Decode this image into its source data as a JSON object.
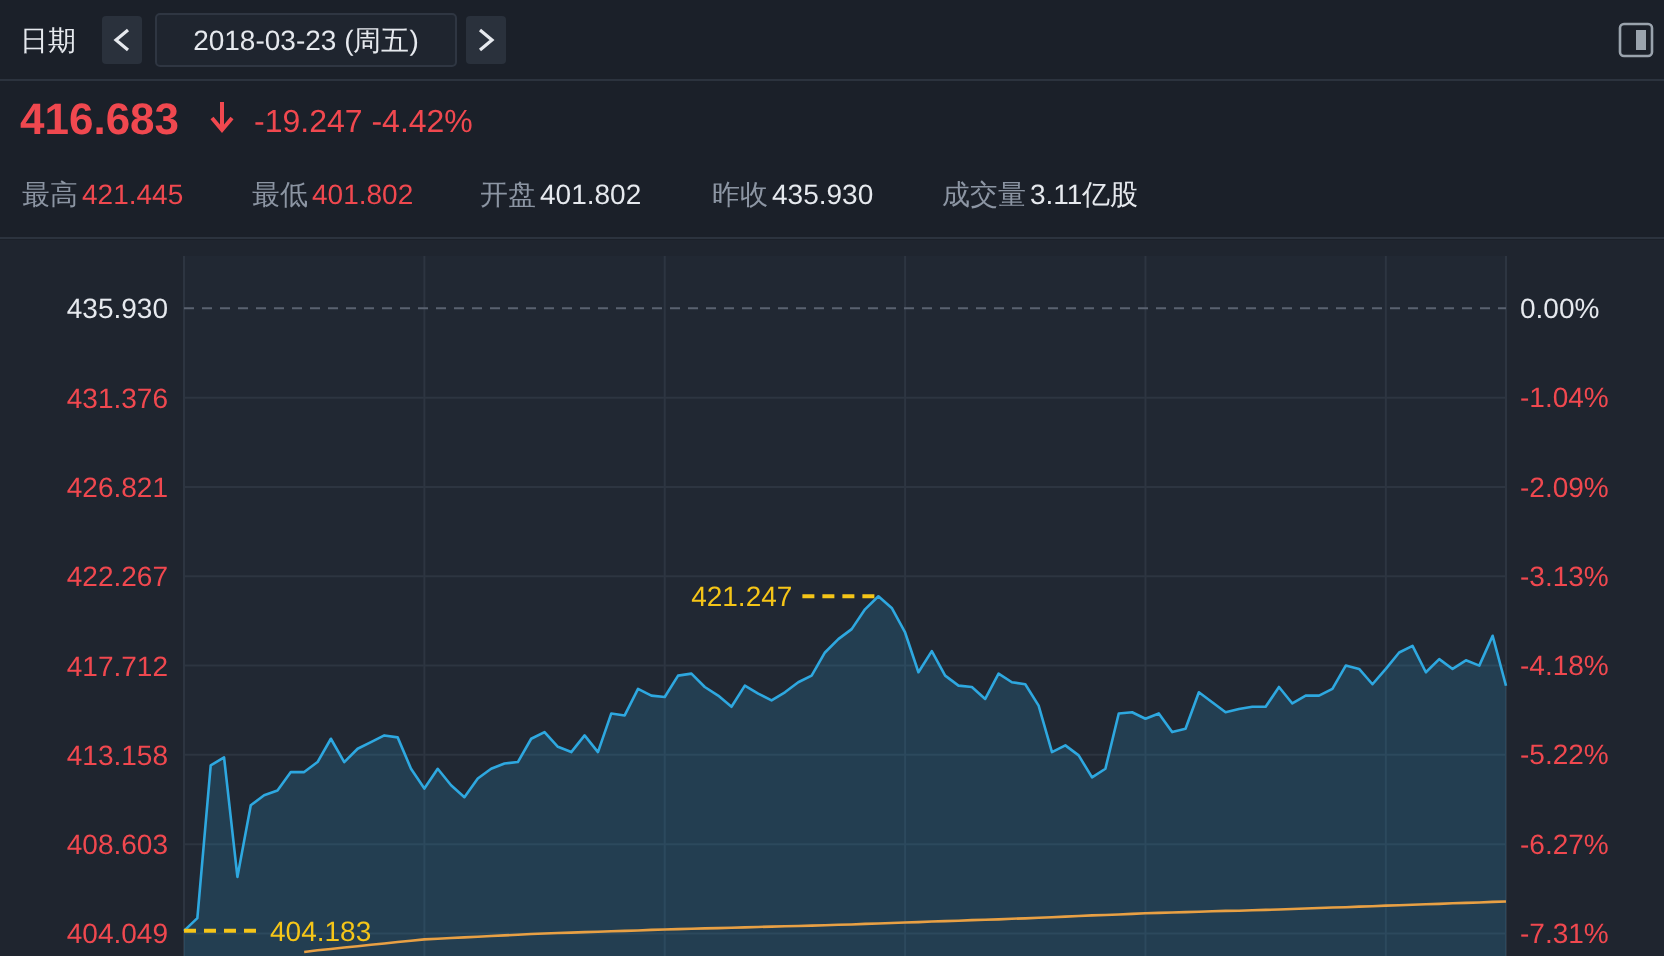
{
  "chart_data": {
    "type": "area",
    "title": "416.683",
    "subtitle": "-19.247 -4.42%",
    "annotations": [
      "日期",
      "2018-03-23 (周五)",
      "最高",
      "421.445",
      "最低",
      "401.802",
      "开盘",
      "401.802",
      "昨收",
      "435.930",
      "成交量",
      "3.11亿股",
      "421.247",
      "404.183"
    ],
    "categories": [
      null,
      null,
      null,
      null,
      null,
      null,
      null,
      null,
      null,
      null,
      null,
      null,
      null,
      null,
      null,
      null,
      null,
      null,
      null,
      null,
      null,
      null,
      null,
      null,
      null,
      null,
      null,
      null,
      null,
      null,
      null,
      null,
      null,
      null,
      null,
      null,
      null,
      null,
      null,
      null,
      null,
      null,
      null,
      null,
      null,
      null,
      null,
      null,
      null,
      null,
      null,
      null,
      null,
      null,
      null,
      null,
      null,
      null,
      null,
      null,
      null,
      null,
      null,
      null,
      null,
      null,
      null,
      null,
      null,
      null,
      null,
      null,
      null,
      null,
      null,
      null,
      null,
      null,
      null,
      null,
      null,
      null,
      null,
      null,
      null,
      null,
      null,
      null,
      null,
      null,
      null,
      null,
      null,
      null,
      null,
      null,
      null,
      null,
      null,
      null
    ],
    "ylim": [
      402.9,
      438.6
    ],
    "yticks": [
      {
        "value": 435.93,
        "label": "435.930"
      },
      431.376,
      426.821,
      422.267,
      417.712,
      413.158,
      408.603,
      404.049
    ],
    "y2lim": [
      -7.58,
      0.61
    ],
    "y2ticks": [
      {
        "value": 0,
        "label": "0.00%"
      },
      {
        "value": -1.04,
        "label": "-1.04%"
      },
      {
        "value": -2.09,
        "label": "-2.09%"
      },
      {
        "value": -3.13,
        "label": "-3.13%"
      },
      {
        "value": -4.18,
        "label": "-4.18%"
      },
      {
        "value": -5.22,
        "label": "-5.22%"
      },
      {
        "value": -6.27,
        "label": "-6.27%"
      },
      {
        "value": -7.31,
        "label": "-7.31%"
      }
    ],
    "ref_lines": [
      {
        "axis": "y",
        "value": 435.93,
        "color": "#5a6270",
        "line_style": "dashed"
      }
    ],
    "grid": true,
    "tick_labels": "y",
    "series": [
      {
        "color": "#2ea8e0",
        "values": [
          404.183,
          404.83,
          412.62,
          413.03,
          406.93,
          410.59,
          411.1,
          411.34,
          412.28,
          412.28,
          412.79,
          413.98,
          412.79,
          413.47,
          413.81,
          414.15,
          414.05,
          412.45,
          411.44,
          412.45,
          411.61,
          411.0,
          411.95,
          412.45,
          412.72,
          412.79,
          413.98,
          414.32,
          413.57,
          413.3,
          414.15,
          413.3,
          415.27,
          415.17,
          416.52,
          416.18,
          416.11,
          417.2,
          417.3,
          416.62,
          416.18,
          415.61,
          416.69,
          416.28,
          415.94,
          416.35,
          416.86,
          417.2,
          418.38,
          419.06,
          419.57,
          420.58,
          421.247,
          420.65,
          419.4,
          417.37,
          418.45,
          417.2,
          416.69,
          416.62,
          416.01,
          417.3,
          416.86,
          416.76,
          415.67,
          413.3,
          413.64,
          413.13,
          412.01,
          412.45,
          415.27,
          415.33,
          415.0,
          415.27,
          414.32,
          414.49,
          416.35,
          415.84,
          415.33,
          415.5,
          415.61,
          415.61,
          416.62,
          415.78,
          416.18,
          416.18,
          416.52,
          417.71,
          417.54,
          416.76,
          417.54,
          418.38,
          418.72,
          417.37,
          418.04,
          417.54,
          417.98,
          417.71,
          419.23,
          416.683
        ]
      },
      {
        "type": "line",
        "color": "#e8a044",
        "values": [
          null,
          null,
          null,
          null,
          null,
          null,
          null,
          null,
          null,
          403.1,
          403.19,
          403.26,
          403.33,
          403.4,
          403.47,
          403.54,
          403.61,
          403.68,
          403.75,
          403.78,
          403.82,
          403.85,
          403.88,
          403.92,
          403.95,
          403.98,
          404.02,
          404.05,
          404.07,
          404.09,
          404.12,
          404.14,
          404.16,
          404.18,
          404.2,
          404.23,
          404.25,
          404.27,
          404.29,
          404.31,
          404.32,
          404.34,
          404.36,
          404.38,
          404.4,
          404.42,
          404.43,
          404.45,
          404.47,
          404.49,
          404.51,
          404.54,
          404.56,
          404.58,
          404.61,
          404.63,
          404.66,
          404.68,
          404.7,
          404.73,
          404.75,
          404.77,
          404.8,
          404.82,
          404.85,
          404.88,
          404.91,
          404.94,
          404.97,
          404.99,
          405.02,
          405.05,
          405.08,
          405.1,
          405.12,
          405.14,
          405.16,
          405.18,
          405.2,
          405.21,
          405.23,
          405.25,
          405.27,
          405.3,
          405.32,
          405.35,
          405.37,
          405.39,
          405.42,
          405.44,
          405.47,
          405.49,
          405.51,
          405.54,
          405.56,
          405.59,
          405.61,
          405.63,
          405.66,
          405.68
        ]
      }
    ]
  }
}
